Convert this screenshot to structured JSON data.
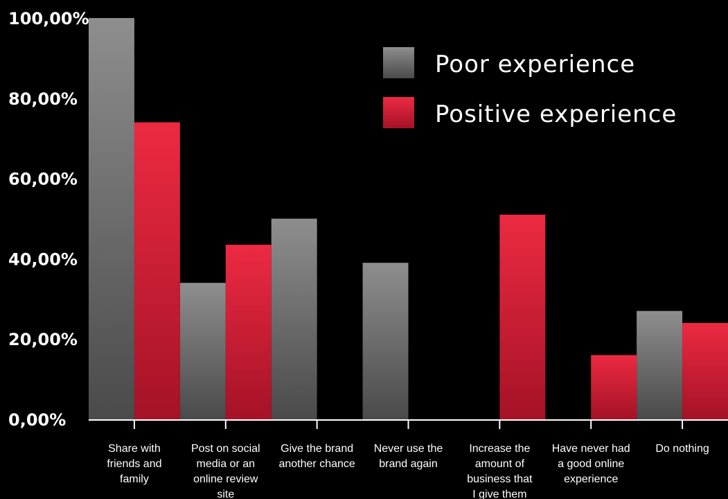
{
  "chart_data": {
    "type": "bar",
    "categories": [
      [
        "Share with",
        "friends and",
        "family"
      ],
      [
        "Post on social",
        "media or an",
        "online review",
        "site"
      ],
      [
        "Give the brand",
        "another chance"
      ],
      [
        "Never use the",
        "brand again"
      ],
      [
        "Increase the",
        "amount of",
        "business that",
        "I give them"
      ],
      [
        "Have never had",
        "a good online",
        "experience"
      ],
      [
        "Do nothing"
      ]
    ],
    "series": [
      {
        "name": "Poor experience",
        "values": [
          100,
          34,
          50,
          39,
          0,
          0,
          27
        ],
        "color": "#8a8a8a"
      },
      {
        "name": "Positive experience",
        "values": [
          74,
          43.5,
          0,
          0,
          51,
          16,
          24
        ],
        "color": "#e0223a"
      }
    ],
    "yticks": [
      "0,00%",
      "20,00%",
      "40,00%",
      "60,00%",
      "80,00%",
      "100,00%"
    ],
    "ylim": [
      0,
      100
    ],
    "grid": false,
    "legend": "top-right"
  }
}
